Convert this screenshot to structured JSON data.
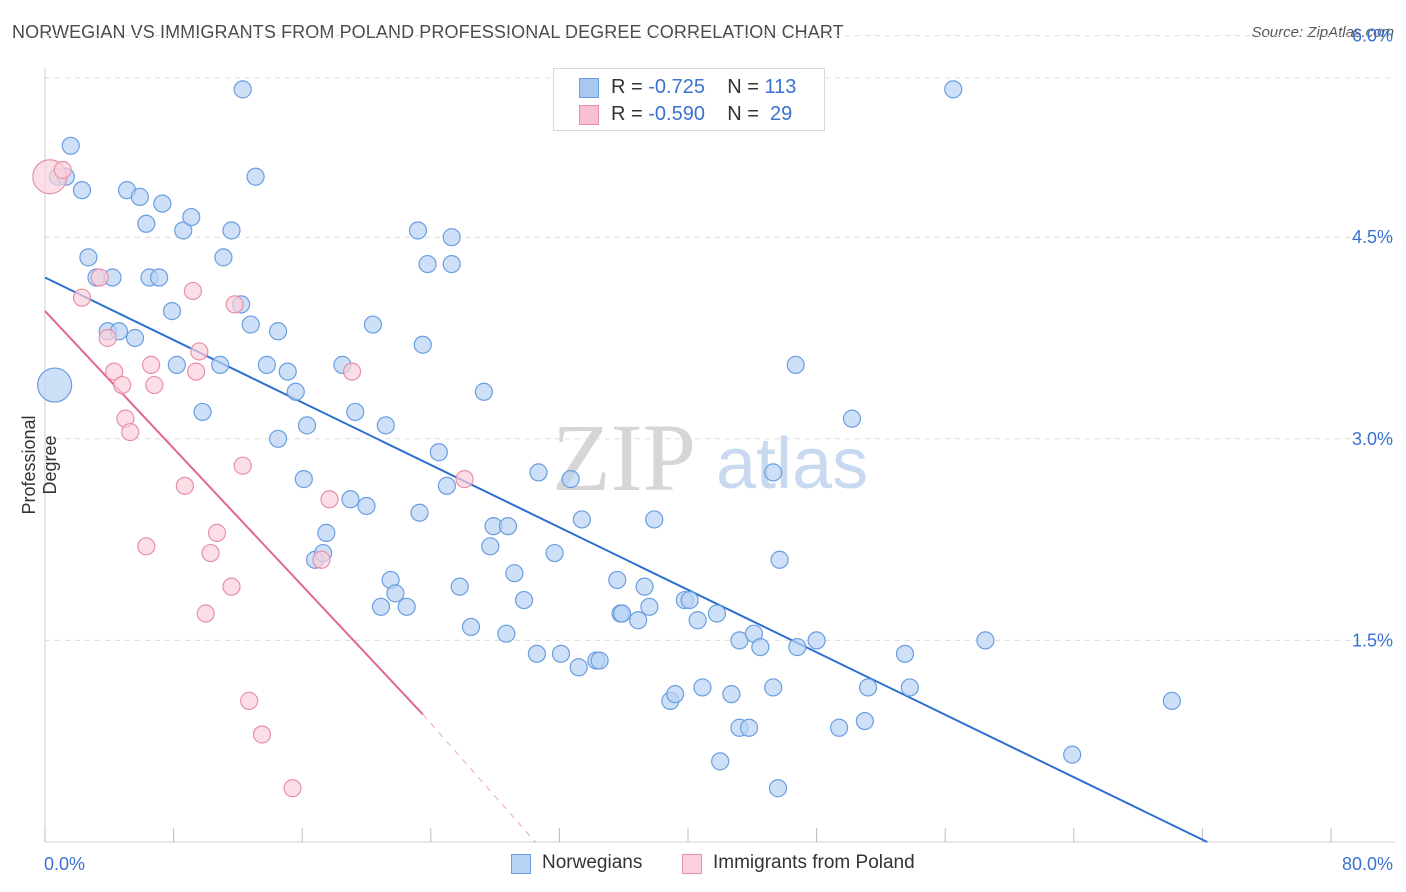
{
  "title": "NORWEGIAN VS IMMIGRANTS FROM POLAND PROFESSIONAL DEGREE CORRELATION CHART",
  "source": "Source: ZipAtlas.com",
  "watermark": {
    "zip": "ZIP",
    "atlas": "atlas"
  },
  "legend": {
    "rows": [
      {
        "r_label": "R = ",
        "r_value": "-0.725",
        "n_label": "N = ",
        "n_value": "113",
        "color": "#a8c8f0",
        "border": "#6b9ee0"
      },
      {
        "r_label": "R = ",
        "r_value": "-0.590",
        "n_label": "N = ",
        "n_value": " 29",
        "color": "#f8c0d0",
        "border": "#e890a8"
      }
    ]
  },
  "bottom_legend": [
    {
      "label": "Norwegians",
      "color": "#b8d3f5",
      "border": "#6b9ee0"
    },
    {
      "label": "Immigrants from Poland",
      "color": "#fbd0dc",
      "border": "#e890a8"
    }
  ],
  "chart_data": {
    "type": "scatter",
    "xlabel": "",
    "ylabel": "Professional Degree",
    "xlim": [
      0,
      80
    ],
    "ylim": [
      0,
      6.25
    ],
    "x_tick_labels": [
      "0.0%",
      "80.0%"
    ],
    "y_ticks": [
      1.5,
      3.0,
      4.5,
      6.0
    ],
    "y_tick_labels": [
      "1.5%",
      "3.0%",
      "4.5%",
      "6.0%"
    ],
    "grid": true,
    "legend_position": "top-center",
    "series": [
      {
        "name": "Norwegians",
        "color": "#6b9ee0",
        "fill": "#b8d3f5",
        "trend": {
          "x": [
            0,
            72.3
          ],
          "y": [
            4.2,
            0.0
          ],
          "color": "#2d6fcf"
        },
        "points": [
          [
            0.6,
            3.4,
            "large"
          ],
          [
            0.8,
            4.95
          ],
          [
            1.3,
            4.95
          ],
          [
            1.6,
            5.18
          ],
          [
            2.3,
            4.85
          ],
          [
            2.7,
            4.35
          ],
          [
            3.2,
            4.2
          ],
          [
            4.2,
            4.2
          ],
          [
            3.9,
            3.8
          ],
          [
            5.1,
            4.85
          ],
          [
            5.9,
            4.8
          ],
          [
            4.6,
            3.8
          ],
          [
            5.6,
            3.75
          ],
          [
            6.5,
            4.2
          ],
          [
            7.1,
            4.2
          ],
          [
            7.9,
            3.95
          ],
          [
            8.2,
            3.55
          ],
          [
            6.3,
            4.6
          ],
          [
            7.3,
            4.75
          ],
          [
            8.6,
            4.55
          ],
          [
            9.1,
            4.65
          ],
          [
            9.8,
            3.2
          ],
          [
            10.9,
            3.55
          ],
          [
            11.1,
            4.35
          ],
          [
            11.6,
            4.55
          ],
          [
            12.2,
            4.0
          ],
          [
            12.8,
            3.85
          ],
          [
            12.3,
            5.6
          ],
          [
            13.1,
            4.95
          ],
          [
            13.8,
            3.55
          ],
          [
            14.5,
            3.0
          ],
          [
            14.5,
            3.8
          ],
          [
            15.1,
            3.5
          ],
          [
            15.6,
            3.35
          ],
          [
            16.1,
            2.7
          ],
          [
            16.3,
            3.1
          ],
          [
            16.8,
            2.1
          ],
          [
            17.3,
            2.15
          ],
          [
            17.5,
            2.3
          ],
          [
            18.5,
            3.55
          ],
          [
            19.0,
            2.55
          ],
          [
            19.3,
            3.2
          ],
          [
            20.0,
            2.5
          ],
          [
            20.4,
            3.85
          ],
          [
            20.9,
            1.75
          ],
          [
            21.2,
            3.1
          ],
          [
            21.5,
            1.95
          ],
          [
            21.8,
            1.85
          ],
          [
            22.5,
            1.75
          ],
          [
            23.3,
            2.45
          ],
          [
            23.5,
            3.7
          ],
          [
            23.2,
            4.55
          ],
          [
            23.8,
            4.3
          ],
          [
            24.5,
            2.9
          ],
          [
            25.0,
            2.65
          ],
          [
            25.3,
            4.5
          ],
          [
            25.3,
            4.3
          ],
          [
            25.8,
            1.9
          ],
          [
            26.5,
            1.6
          ],
          [
            27.3,
            3.35
          ],
          [
            27.7,
            2.2
          ],
          [
            27.9,
            2.35
          ],
          [
            28.8,
            2.35
          ],
          [
            28.7,
            1.55
          ],
          [
            29.2,
            2.0
          ],
          [
            29.8,
            1.8
          ],
          [
            30.6,
            1.4
          ],
          [
            30.7,
            2.75
          ],
          [
            31.7,
            2.15
          ],
          [
            32.1,
            1.4
          ],
          [
            32.7,
            2.7
          ],
          [
            33.2,
            1.3
          ],
          [
            33.4,
            2.4
          ],
          [
            34.3,
            1.35
          ],
          [
            34.5,
            1.35
          ],
          [
            35.6,
            1.95
          ],
          [
            35.8,
            1.7
          ],
          [
            35.9,
            1.7
          ],
          [
            36.9,
            1.65
          ],
          [
            37.3,
            1.9
          ],
          [
            37.6,
            1.75
          ],
          [
            37.9,
            2.4
          ],
          [
            38.9,
            1.05
          ],
          [
            39.2,
            1.1
          ],
          [
            39.8,
            1.8
          ],
          [
            40.1,
            1.8
          ],
          [
            40.6,
            1.65
          ],
          [
            40.9,
            1.15
          ],
          [
            41.8,
            1.7
          ],
          [
            42.0,
            0.6
          ],
          [
            42.7,
            1.1
          ],
          [
            43.2,
            0.85
          ],
          [
            43.2,
            1.5
          ],
          [
            43.8,
            0.85
          ],
          [
            44.1,
            1.55
          ],
          [
            44.5,
            1.45
          ],
          [
            45.3,
            1.15
          ],
          [
            45.6,
            0.4
          ],
          [
            45.3,
            2.75
          ],
          [
            45.7,
            2.1
          ],
          [
            46.8,
            1.45
          ],
          [
            46.7,
            3.55
          ],
          [
            48.0,
            1.5
          ],
          [
            49.4,
            0.85
          ],
          [
            50.2,
            3.15
          ],
          [
            51.0,
            0.9
          ],
          [
            51.2,
            1.15
          ],
          [
            53.5,
            1.4
          ],
          [
            53.8,
            1.15
          ],
          [
            56.5,
            5.6
          ],
          [
            58.5,
            1.5
          ],
          [
            63.9,
            0.65
          ],
          [
            70.1,
            1.05
          ]
        ]
      },
      {
        "name": "Immigrants from Poland",
        "color": "#e890a8",
        "fill": "#fbd0dc",
        "trend": {
          "x": [
            0,
            23.5
          ],
          "y": [
            3.95,
            0.95
          ],
          "color": "#e06890",
          "dashed_to": [
            30.5,
            0.0
          ]
        },
        "points": [
          [
            0.3,
            4.95,
            "large"
          ],
          [
            1.1,
            5.0
          ],
          [
            2.3,
            4.05
          ],
          [
            3.4,
            4.2
          ],
          [
            3.9,
            3.75
          ],
          [
            4.3,
            3.5
          ],
          [
            4.8,
            3.4
          ],
          [
            5.0,
            3.15
          ],
          [
            5.3,
            3.05
          ],
          [
            6.3,
            2.2
          ],
          [
            6.6,
            3.55
          ],
          [
            6.8,
            3.4
          ],
          [
            8.7,
            2.65
          ],
          [
            9.2,
            4.1
          ],
          [
            9.6,
            3.65
          ],
          [
            9.4,
            3.5
          ],
          [
            10.0,
            1.7
          ],
          [
            10.3,
            2.15
          ],
          [
            10.7,
            2.3
          ],
          [
            11.6,
            1.9
          ],
          [
            11.8,
            4.0
          ],
          [
            12.3,
            2.8
          ],
          [
            12.7,
            1.05
          ],
          [
            13.5,
            0.8
          ],
          [
            15.4,
            0.4
          ],
          [
            17.2,
            2.1
          ],
          [
            17.7,
            2.55
          ],
          [
            19.1,
            3.5
          ],
          [
            26.1,
            2.7
          ]
        ]
      }
    ]
  }
}
